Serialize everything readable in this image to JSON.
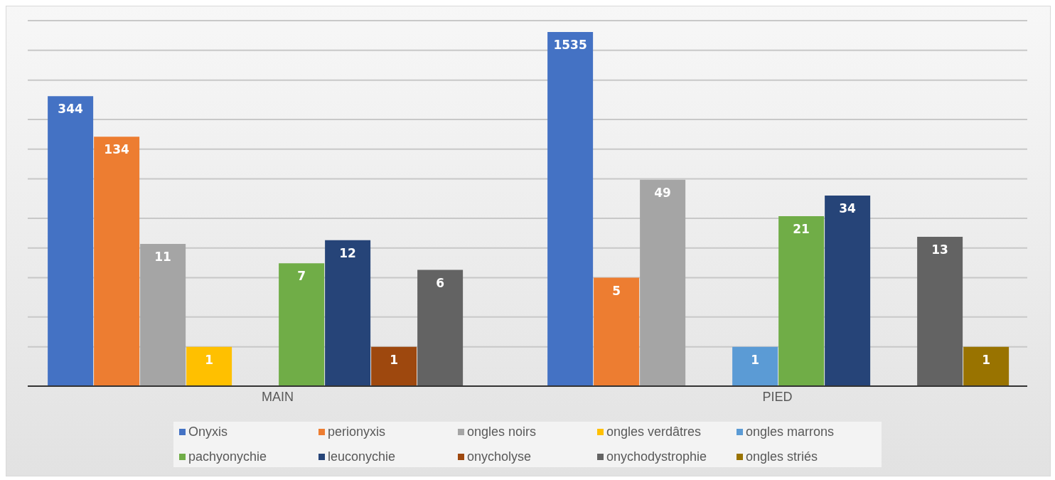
{
  "chart_data": {
    "type": "bar",
    "categories": [
      "MAIN",
      "PIED"
    ],
    "series": [
      {
        "name": "Onyxis",
        "color": "#4472c4",
        "values": [
          344,
          1535
        ]
      },
      {
        "name": "perionyxis",
        "color": "#ed7d31",
        "values": [
          134,
          5
        ]
      },
      {
        "name": "ongles noirs",
        "color": "#a5a5a5",
        "values": [
          11,
          49
        ]
      },
      {
        "name": "ongles verdâtres",
        "color": "#ffc000",
        "values": [
          1,
          null
        ]
      },
      {
        "name": "ongles marrons",
        "color": "#5b9bd5",
        "values": [
          null,
          1
        ]
      },
      {
        "name": "pachyonychie",
        "color": "#70ad47",
        "values": [
          7,
          21
        ]
      },
      {
        "name": "leuconychie",
        "color": "#264478",
        "values": [
          12,
          34
        ]
      },
      {
        "name": "onycholyse",
        "color": "#9e480e",
        "values": [
          1,
          null
        ]
      },
      {
        "name": "onychodystrophie",
        "color": "#636363",
        "values": [
          6,
          13
        ]
      },
      {
        "name": "ongles striés",
        "color": "#997300",
        "values": [
          null,
          1
        ]
      }
    ],
    "log": true,
    "ylim": [
      0.4,
      2000
    ],
    "yticks": [
      {
        "value": 1,
        "label": null
      },
      {
        "value": 2,
        "label": null
      },
      {
        "value": 5,
        "label": null
      },
      {
        "value": 10,
        "label": null
      },
      {
        "value": 20,
        "label": null
      },
      {
        "value": 50,
        "label": null
      },
      {
        "value": 100,
        "label": null
      },
      {
        "value": 200,
        "label": null
      },
      {
        "value": 500,
        "label": null
      },
      {
        "value": 1000,
        "label": null
      },
      {
        "value": 2000,
        "label": null
      }
    ],
    "grid": "y",
    "data_labels": true,
    "legend": "bottom"
  }
}
